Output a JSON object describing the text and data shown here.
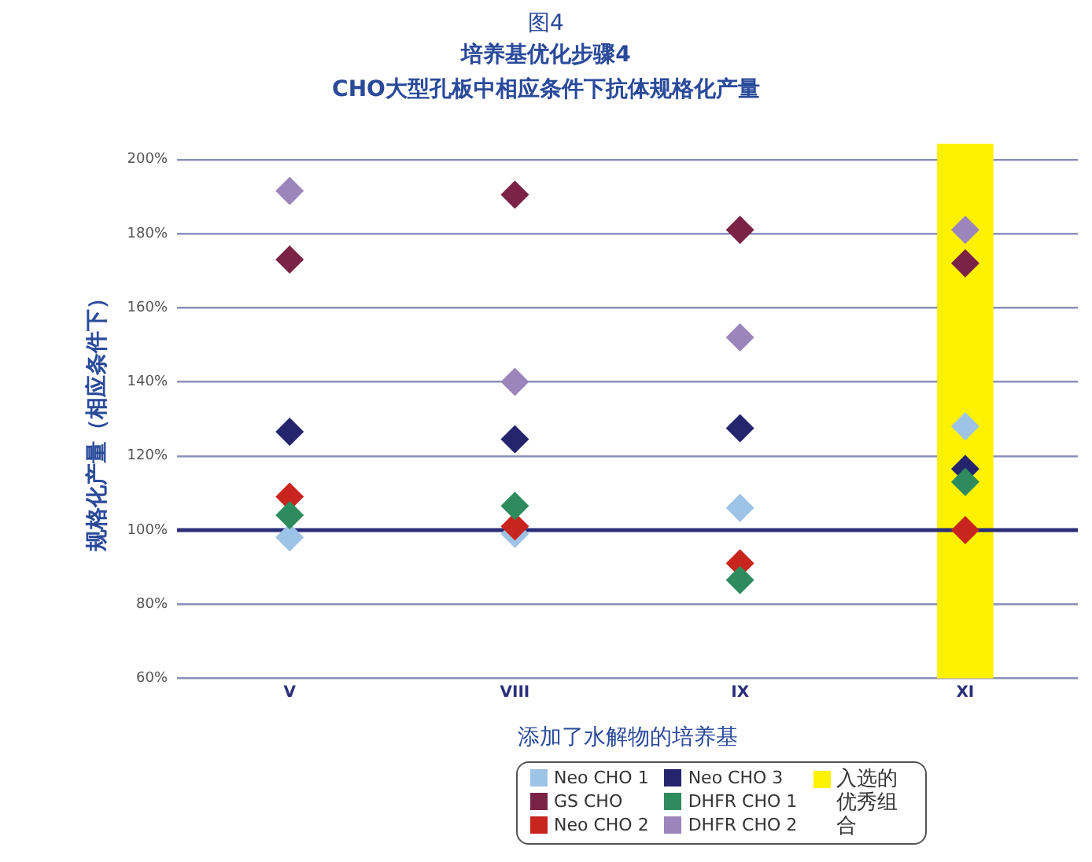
{
  "chart_data": {
    "type": "scatter",
    "title": "图4",
    "subtitle": "培养基优化步骤4\nCHO大型孔板中相应条件下抗体规格化产量",
    "xlabel": "添加了水解物的培养基",
    "ylabel": "规格化产量（相应条件下）",
    "categories": [
      "V",
      "VIII",
      "IX",
      "XI"
    ],
    "series": [
      {
        "name": "Neo CHO 1",
        "color": "#9dc3e6",
        "values": [
          98,
          99,
          106,
          128
        ]
      },
      {
        "name": "GS CHO",
        "color": "#7b2346",
        "values": [
          173,
          190.5,
          181,
          172
        ]
      },
      {
        "name": "Neo CHO 2",
        "color": "#c8251e",
        "values": [
          109,
          101,
          91,
          100
        ]
      },
      {
        "name": "Neo CHO 3",
        "color": "#25256e",
        "values": [
          126.5,
          124.5,
          127.5,
          116.5
        ]
      },
      {
        "name": "DHFR CHO 1",
        "color": "#2e8b5e",
        "values": [
          104,
          106.5,
          86.5,
          113
        ]
      },
      {
        "name": "DHFR CHO 2",
        "color": "#9b85bb",
        "values": [
          191.5,
          140,
          152,
          181
        ]
      }
    ],
    "ylim": [
      60,
      200
    ],
    "yticks": [
      {
        "value": 60,
        "label": "60%"
      },
      {
        "value": 80,
        "label": "80%"
      },
      {
        "value": 100,
        "label": "100%"
      },
      {
        "value": 120,
        "label": "120%"
      },
      {
        "value": 140,
        "label": "140%"
      },
      {
        "value": 160,
        "label": "160%"
      },
      {
        "value": 180,
        "label": "180%"
      },
      {
        "value": 200,
        "label": "200%"
      }
    ],
    "ref_lines": [
      {
        "axis": "y",
        "value": 100,
        "color": "#2b2f7a"
      }
    ],
    "bands": [
      {
        "axis": "x",
        "from": "XI",
        "to": "XI",
        "label": "入选的优秀组合",
        "color": "#fff200"
      }
    ],
    "grid": "y",
    "legend": "bottom",
    "marker": "diamond"
  }
}
